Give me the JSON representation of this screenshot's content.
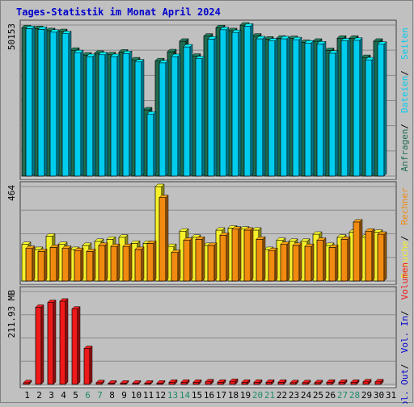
{
  "title": "Tages-Statistik im Monat April 2024",
  "colors": {
    "background": "#c0c0c0",
    "title": "#0000cc",
    "anfragen_dark": "#1f6b4f",
    "dateien": "#00ccee",
    "besuche": "#f5f02a",
    "rechner": "#f08a10",
    "volumen_in": "#ee1a1a",
    "weekend_label": "#1f8a6a"
  },
  "chart_data": [
    {
      "type": "bar",
      "panel": "anfragen",
      "ylabel_value": "50153",
      "ylim": [
        0,
        50153
      ],
      "grid": true,
      "categories": [
        "1",
        "2",
        "3",
        "4",
        "5",
        "6",
        "7",
        "8",
        "9",
        "10",
        "11",
        "12",
        "13",
        "14",
        "15",
        "16",
        "17",
        "18",
        "19",
        "20",
        "21",
        "22",
        "23",
        "24",
        "25",
        "26",
        "27",
        "28",
        "29",
        "30",
        "31"
      ],
      "series": [
        {
          "name": "Anfragen",
          "values": [
            49300,
            49000,
            48300,
            48000,
            41800,
            40200,
            40800,
            40300,
            41200,
            38600,
            22000,
            38300,
            41300,
            44800,
            39800,
            46500,
            49300,
            48300,
            50153,
            46500,
            45500,
            45800,
            45700,
            44400,
            44800,
            41700,
            45800,
            45800,
            39400,
            44800,
            null
          ]
        },
        {
          "name": "Dateien",
          "values": [
            49000,
            48700,
            47800,
            47300,
            41000,
            39700,
            40300,
            39700,
            40700,
            37900,
            20600,
            37600,
            39700,
            42900,
            39000,
            45500,
            48600,
            47700,
            49800,
            45600,
            44900,
            45600,
            45300,
            44200,
            43900,
            40800,
            44900,
            45100,
            38600,
            43800,
            null
          ]
        }
      ],
      "legend_right": [
        {
          "label": "Anfragen",
          "color_key": "anfragen_dark"
        },
        {
          "label": "Dateien",
          "color_key": "dateien"
        },
        {
          "label": "Seiten",
          "color_key": "dateien"
        }
      ]
    },
    {
      "type": "bar",
      "panel": "besuche",
      "ylabel_value": "464",
      "ylim": [
        0,
        464
      ],
      "grid": true,
      "categories": [
        "1",
        "2",
        "3",
        "4",
        "5",
        "6",
        "7",
        "8",
        "9",
        "10",
        "11",
        "12",
        "13",
        "14",
        "15",
        "16",
        "17",
        "18",
        "19",
        "20",
        "21",
        "22",
        "23",
        "24",
        "25",
        "26",
        "27",
        "28",
        "29",
        "30",
        "31"
      ],
      "series": [
        {
          "name": "Besuche",
          "values": [
            180,
            155,
            220,
            180,
            155,
            175,
            195,
            205,
            215,
            185,
            185,
            464,
            170,
            245,
            215,
            175,
            250,
            260,
            255,
            250,
            155,
            200,
            195,
            195,
            230,
            175,
            215,
            240,
            215,
            240,
            null
          ]
        },
        {
          "name": "Rechner",
          "values": [
            160,
            145,
            165,
            160,
            150,
            145,
            175,
            170,
            170,
            155,
            185,
            410,
            140,
            200,
            205,
            175,
            225,
            255,
            250,
            205,
            150,
            180,
            175,
            170,
            200,
            165,
            205,
            290,
            245,
            230,
            null
          ]
        }
      ],
      "legend_right": [
        {
          "label": "Besuche",
          "color_key": "besuche"
        },
        {
          "label": "Rechner",
          "color_key": "rechner"
        }
      ]
    },
    {
      "type": "bar",
      "panel": "volumen",
      "ylabel_value": "211.93 MB",
      "ylim": [
        0,
        211.93
      ],
      "grid": true,
      "categories": [
        "1",
        "2",
        "3",
        "4",
        "5",
        "6",
        "7",
        "8",
        "9",
        "10",
        "11",
        "12",
        "13",
        "14",
        "15",
        "16",
        "17",
        "18",
        "19",
        "20",
        "21",
        "22",
        "23",
        "24",
        "25",
        "26",
        "27",
        "28",
        "29",
        "30",
        "31"
      ],
      "series": [
        {
          "name": "Volumen",
          "values": [
            4,
            176,
            187,
            190,
            172,
            82,
            4,
            3,
            3,
            3,
            3,
            3,
            5,
            5,
            5,
            6,
            5,
            7,
            5,
            5,
            5,
            5,
            4,
            4,
            4,
            5,
            5,
            5,
            6,
            6,
            null
          ]
        }
      ],
      "legend_right": [
        {
          "label": "Vol. Out",
          "color_key": "title"
        },
        {
          "label": "Vol. In",
          "color_key": "title"
        },
        {
          "label": "Volumen",
          "color_key": "volumen_in"
        }
      ]
    }
  ],
  "x_axis": {
    "labels": [
      "1",
      "2",
      "3",
      "4",
      "5",
      "6",
      "7",
      "8",
      "9",
      "10",
      "11",
      "12",
      "13",
      "14",
      "15",
      "16",
      "17",
      "18",
      "19",
      "20",
      "21",
      "22",
      "23",
      "24",
      "25",
      "26",
      "27",
      "28",
      "29",
      "30",
      "31"
    ],
    "weekend": [
      "6",
      "7",
      "13",
      "14",
      "20",
      "21",
      "27",
      "28"
    ]
  }
}
